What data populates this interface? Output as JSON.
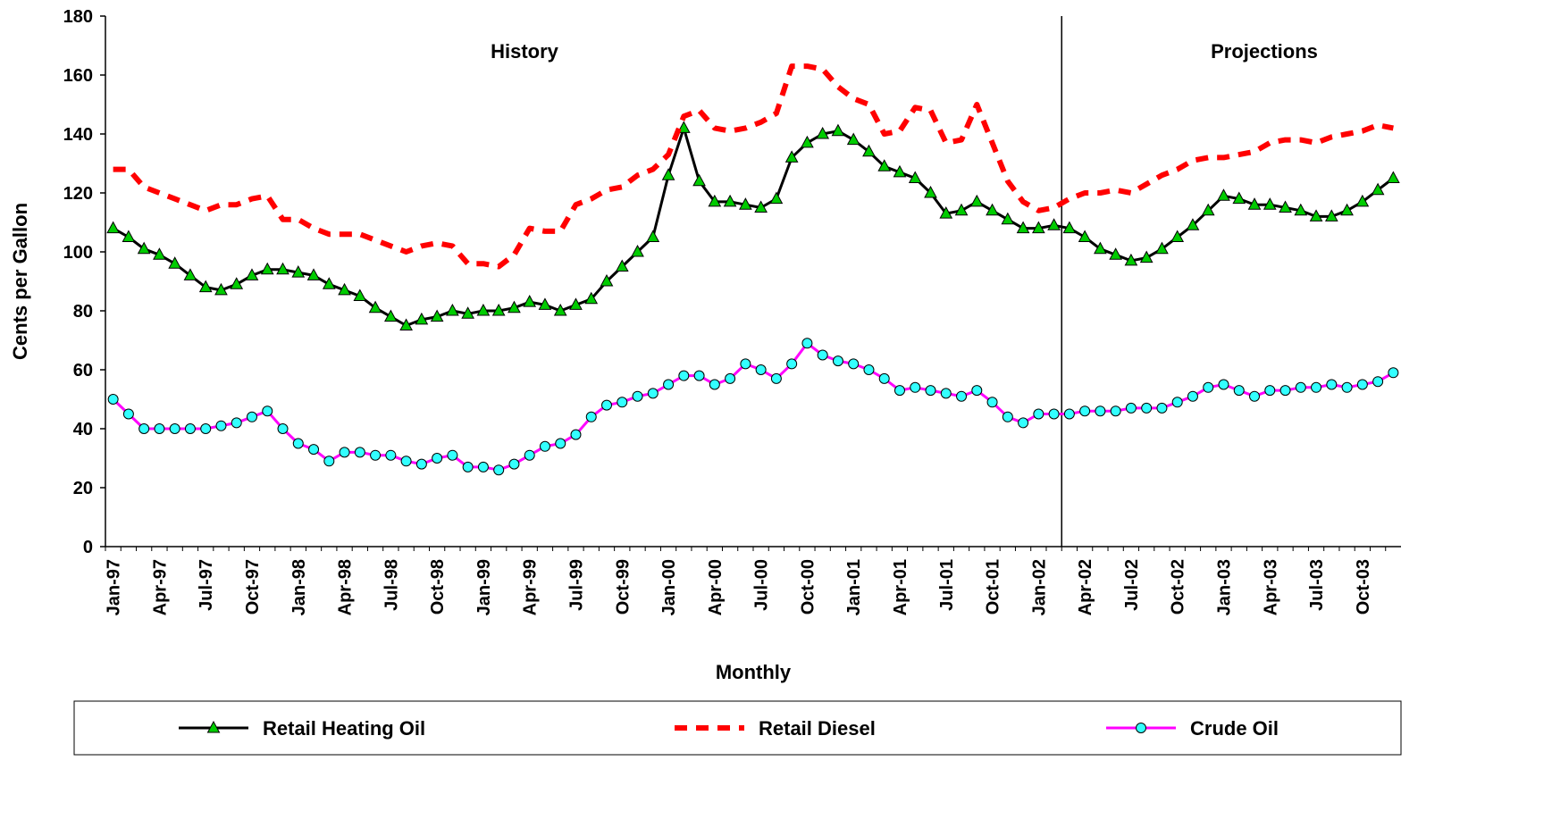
{
  "chart_data": {
    "type": "line",
    "y_label": "Cents per Gallon",
    "x_label": "Monthly",
    "annotations": [
      "History",
      "Projections"
    ],
    "categories": [
      "Jan-97",
      null,
      null,
      "Apr-97",
      null,
      null,
      "Jul-97",
      null,
      null,
      "Oct-97",
      null,
      null,
      "Jan-98",
      null,
      null,
      "Apr-98",
      null,
      null,
      "Jul-98",
      null,
      null,
      "Oct-98",
      null,
      null,
      "Jan-99",
      null,
      null,
      "Apr-99",
      null,
      null,
      "Jul-99",
      null,
      null,
      "Oct-99",
      null,
      null,
      "Jan-00",
      null,
      null,
      "Apr-00",
      null,
      null,
      "Jul-00",
      null,
      null,
      "Oct-00",
      null,
      null,
      "Jan-01",
      null,
      null,
      "Apr-01",
      null,
      null,
      "Jul-01",
      null,
      null,
      "Oct-01",
      null,
      null,
      "Jan-02",
      null,
      null,
      "Apr-02",
      null,
      null,
      "Jul-02",
      null,
      null,
      "Oct-02",
      null,
      null,
      "Jan-03",
      null,
      null,
      "Apr-03",
      null,
      null,
      "Jul-03",
      null,
      null,
      "Oct-03",
      null,
      null
    ],
    "ylim": [
      0,
      180
    ],
    "yticks": [
      0,
      20,
      40,
      60,
      80,
      100,
      120,
      140,
      160,
      180
    ],
    "series": [
      {
        "name": "Retail Heating Oil",
        "color": "#000000",
        "marker": "triangle",
        "marker_color": "#00cc00",
        "values": [
          108,
          105,
          101,
          99,
          96,
          92,
          88,
          87,
          89,
          92,
          94,
          94,
          93,
          92,
          89,
          87,
          85,
          81,
          78,
          75,
          77,
          78,
          80,
          79,
          80,
          80,
          81,
          83,
          82,
          80,
          82,
          84,
          90,
          95,
          100,
          105,
          126,
          142,
          124,
          117,
          117,
          116,
          115,
          118,
          132,
          137,
          140,
          141,
          138,
          134,
          129,
          127,
          125,
          120,
          113,
          114,
          117,
          114,
          111,
          108,
          108,
          109,
          108,
          105,
          101,
          99,
          97,
          98,
          101,
          105,
          109,
          114,
          119,
          118,
          116,
          116,
          115,
          114,
          112,
          112,
          114,
          117,
          121,
          125
        ]
      },
      {
        "name": "Retail Diesel",
        "color": "#ff0000",
        "marker": "none",
        "dashed": true,
        "values": [
          128,
          128,
          122,
          120,
          118,
          116,
          114,
          116,
          116,
          118,
          119,
          111,
          111,
          108,
          106,
          106,
          106,
          104,
          102,
          100,
          102,
          103,
          102,
          96,
          96,
          95,
          99,
          108,
          107,
          107,
          116,
          118,
          121,
          122,
          126,
          128,
          133,
          146,
          148,
          142,
          141,
          142,
          144,
          147,
          163,
          163,
          162,
          156,
          152,
          150,
          140,
          141,
          149,
          148,
          137,
          138,
          150,
          137,
          124,
          117,
          114,
          115,
          118,
          120,
          120,
          121,
          120,
          123,
          126,
          128,
          131,
          132,
          132,
          133,
          134,
          137,
          138,
          138,
          137,
          139,
          140,
          141,
          143,
          142
        ]
      },
      {
        "name": "Crude Oil",
        "color": "#ff00ff",
        "marker": "circle",
        "marker_color": "#33ffff",
        "values": [
          50,
          45,
          40,
          40,
          40,
          40,
          40,
          41,
          42,
          44,
          46,
          40,
          35,
          33,
          29,
          32,
          32,
          31,
          31,
          29,
          28,
          30,
          31,
          27,
          27,
          26,
          28,
          31,
          34,
          35,
          38,
          44,
          48,
          49,
          51,
          52,
          55,
          58,
          58,
          55,
          57,
          62,
          60,
          57,
          62,
          69,
          65,
          63,
          62,
          60,
          57,
          53,
          54,
          53,
          52,
          51,
          53,
          49,
          44,
          42,
          45,
          45,
          45,
          46,
          46,
          46,
          47,
          47,
          47,
          49,
          51,
          54,
          55,
          53,
          51,
          53,
          53,
          54,
          54,
          55,
          54,
          55,
          56,
          59
        ]
      }
    ]
  }
}
